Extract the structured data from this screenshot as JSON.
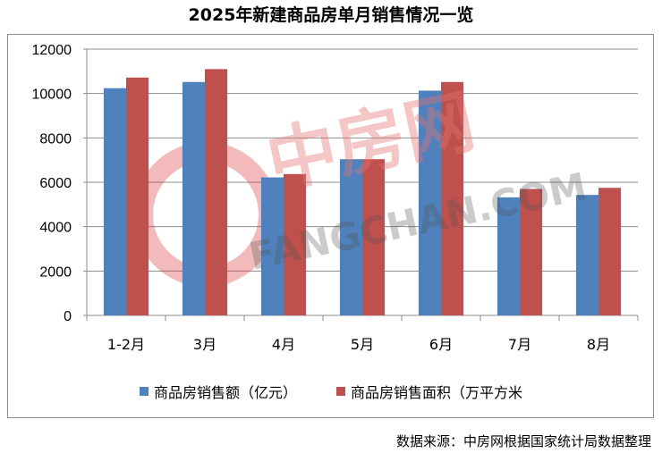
{
  "chart_data": {
    "type": "bar",
    "title": "2025年新建商品房单月销售情况一览",
    "categories": [
      "1-2月",
      "3月",
      "4月",
      "5月",
      "6月",
      "7月",
      "8月"
    ],
    "series": [
      {
        "name": "商品房销售额（亿元）",
        "color": "#4f81bd",
        "values": [
          10240,
          10520,
          6220,
          7040,
          10130,
          5320,
          5430
        ]
      },
      {
        "name": "商品房销售面积（万平方米",
        "color": "#c0504d",
        "values": [
          10720,
          11100,
          6370,
          7040,
          10520,
          5700,
          5750
        ]
      }
    ],
    "ylim": [
      0,
      12000
    ],
    "yticks": [
      0,
      2000,
      4000,
      6000,
      8000,
      10000,
      12000
    ],
    "grid": true,
    "legend": "bottom",
    "xlabel": "",
    "ylabel": ""
  },
  "watermark": {
    "cn": "中房网",
    "en": "FANGCHAN.COM"
  },
  "source": "数据来源：中房网根据国家统计局数据整理"
}
